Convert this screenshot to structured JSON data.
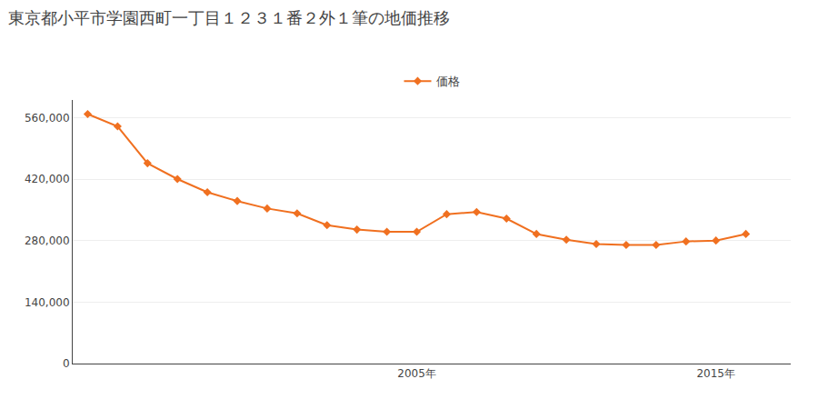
{
  "chart_data": {
    "type": "line",
    "title": "東京都小平市学園西町一丁目１２３１番２外１筆の地価推移",
    "x": [
      1994,
      1995,
      1996,
      1997,
      1998,
      1999,
      2000,
      2001,
      2002,
      2003,
      2004,
      2005,
      2006,
      2007,
      2008,
      2009,
      2010,
      2011,
      2012,
      2013,
      2014,
      2015,
      2016
    ],
    "series": [
      {
        "name": "価格",
        "color": "#f07020",
        "marker": "diamond",
        "line_style": "solid",
        "values": [
          568000,
          540000,
          456000,
          420000,
          390000,
          370000,
          353000,
          342000,
          315000,
          305000,
          300000,
          300000,
          340000,
          345000,
          330000,
          295000,
          282000,
          272000,
          270000,
          270000,
          278000,
          280000,
          295000
        ]
      }
    ],
    "xlim": [
      1993.5,
      2017.5
    ],
    "xticks": [
      {
        "value": 2005,
        "label": "2005年"
      },
      {
        "value": 2015,
        "label": "2015年"
      }
    ],
    "ylim": [
      0,
      600000
    ],
    "yticks": [
      0,
      {
        "value": 140000,
        "label": "140,000"
      },
      {
        "value": 280000,
        "label": "280,000"
      },
      {
        "value": 420000,
        "label": "420,000"
      },
      {
        "value": 560000,
        "label": "560,000"
      }
    ],
    "grid": true,
    "legend": "top"
  }
}
